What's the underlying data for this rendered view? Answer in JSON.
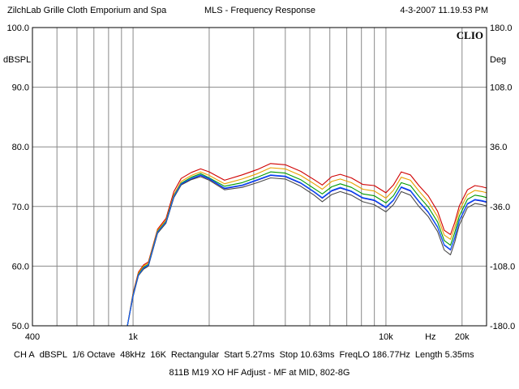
{
  "header": {
    "left": "ZilchLab Grille Cloth Emporium and Spa",
    "center": "MLS - Frequency Response",
    "right": "4-3-2007 11.19.53 PM"
  },
  "footer": {
    "items": [
      "CH A",
      "dBSPL",
      "1/6 Octave",
      "48kHz",
      "16K",
      "Rectangular",
      "Start 5.27ms",
      "Stop 10.63ms",
      "FreqLO 186.77Hz",
      "Length 5.35ms"
    ],
    "caption": "811B M19 XO HF Adjust - MF at MID, 802-8G"
  },
  "chart_data": {
    "type": "line",
    "logo": "CLIO",
    "x_scale": "log",
    "xlim": [
      400,
      25000
    ],
    "ylim": [
      50,
      100
    ],
    "y2lim": [
      -180,
      180
    ],
    "left_axis_unit": "dBSPL",
    "right_axis_unit": "Deg",
    "x_unit": "Hz",
    "grid": true,
    "x_ticks": [
      {
        "value": 400,
        "label": "400"
      },
      {
        "value": 1000,
        "label": "1k"
      },
      {
        "value": 10000,
        "label": "10k"
      },
      {
        "value": 20000,
        "label": "20k"
      }
    ],
    "y_ticks": [
      {
        "value": 50,
        "label": "50.0"
      },
      {
        "value": 60,
        "label": "60.0"
      },
      {
        "value": 70,
        "label": "70.0"
      },
      {
        "value": 80,
        "label": "80.0"
      },
      {
        "value": 90,
        "label": "90.0"
      },
      {
        "value": 100,
        "label": "100.0"
      }
    ],
    "y2_ticks": [
      {
        "value": -180,
        "label": "-180.0"
      },
      {
        "value": -108,
        "label": "-108.0"
      },
      {
        "value": -36,
        "label": "-36.0"
      },
      {
        "value": 36,
        "label": "36.0"
      },
      {
        "value": 108,
        "label": "108.0"
      },
      {
        "value": 180,
        "label": "180.0"
      }
    ],
    "x": [
      400,
      950,
      1000,
      1050,
      1100,
      1150,
      1250,
      1350,
      1450,
      1550,
      1700,
      1850,
      2000,
      2300,
      2700,
      3100,
      3500,
      4000,
      4600,
      5200,
      5600,
      6100,
      6600,
      7300,
      8100,
      9000,
      10000,
      10700,
      11500,
      12500,
      13500,
      14700,
      16000,
      17000,
      18000,
      18700,
      19500,
      21000,
      22500,
      24000,
      25000
    ],
    "series": [
      {
        "color": "#d00000",
        "values": [
          50.0,
          50.0,
          55.5,
          59.0,
          60.2,
          60.7,
          66.2,
          68.0,
          72.5,
          74.7,
          75.7,
          76.3,
          75.8,
          74.4,
          75.3,
          76.2,
          77.2,
          77.0,
          75.9,
          74.5,
          73.6,
          75.0,
          75.4,
          74.8,
          73.7,
          73.5,
          72.3,
          73.6,
          75.8,
          75.3,
          73.5,
          71.8,
          69.2,
          66.0,
          65.3,
          67.3,
          70.1,
          72.8,
          73.5,
          73.3,
          73.1
        ]
      },
      {
        "color": "#e8a000",
        "values": [
          50.0,
          50.0,
          55.3,
          58.8,
          60.0,
          60.5,
          66.0,
          67.7,
          72.0,
          74.2,
          75.2,
          75.8,
          75.2,
          73.8,
          74.6,
          75.5,
          76.5,
          76.3,
          75.2,
          73.8,
          72.9,
          74.2,
          74.6,
          74.0,
          72.9,
          72.6,
          71.4,
          72.7,
          74.9,
          74.4,
          72.6,
          70.8,
          68.3,
          65.2,
          64.5,
          66.5,
          69.3,
          72.0,
          72.7,
          72.5,
          72.3
        ]
      },
      {
        "color": "#009900",
        "values": [
          50.0,
          50.0,
          55.2,
          58.6,
          59.8,
          60.3,
          65.8,
          67.5,
          71.8,
          73.9,
          74.9,
          75.5,
          74.8,
          73.4,
          74.0,
          74.9,
          75.8,
          75.6,
          74.5,
          73.0,
          72.1,
          73.3,
          73.8,
          73.2,
          72.1,
          71.8,
          70.6,
          71.8,
          74.0,
          73.5,
          71.7,
          69.9,
          67.4,
          64.3,
          63.5,
          65.6,
          68.4,
          71.2,
          71.9,
          71.7,
          71.5
        ]
      },
      {
        "color": "#0000c8",
        "values": [
          50.0,
          50.0,
          55.0,
          58.5,
          59.6,
          60.1,
          65.6,
          67.3,
          71.6,
          73.7,
          74.6,
          75.2,
          74.6,
          73.0,
          73.5,
          74.4,
          75.2,
          75.0,
          73.9,
          72.4,
          71.4,
          72.6,
          73.1,
          72.5,
          71.4,
          71.0,
          69.8,
          71.0,
          73.2,
          72.6,
          70.8,
          69.0,
          66.5,
          63.5,
          62.7,
          64.7,
          67.6,
          70.4,
          71.1,
          70.9,
          70.7
        ]
      },
      {
        "color": "#4a4a4a",
        "values": [
          50.0,
          50.0,
          54.9,
          58.4,
          59.5,
          60.0,
          65.5,
          67.2,
          71.5,
          73.6,
          74.5,
          75.0,
          74.4,
          72.8,
          73.2,
          74.0,
          74.8,
          74.6,
          73.4,
          71.9,
          70.8,
          72.0,
          72.5,
          71.9,
          70.8,
          70.3,
          69.1,
          70.3,
          72.5,
          71.9,
          70.0,
          68.3,
          65.8,
          62.7,
          61.9,
          64.0,
          66.9,
          69.8,
          70.5,
          70.3,
          70.1
        ]
      },
      {
        "color": "#1060ff",
        "values": [
          50.0,
          50.0,
          55.1,
          58.5,
          59.7,
          60.2,
          65.7,
          67.4,
          71.7,
          73.8,
          74.7,
          75.3,
          74.7,
          73.1,
          73.6,
          74.5,
          75.3,
          75.1,
          74.0,
          72.5,
          71.5,
          72.7,
          73.2,
          72.6,
          71.5,
          71.1,
          69.9,
          71.1,
          73.3,
          72.7,
          70.9,
          69.1,
          66.6,
          63.6,
          62.8,
          64.8,
          67.7,
          70.5,
          71.2,
          71.0,
          70.8
        ]
      }
    ]
  }
}
